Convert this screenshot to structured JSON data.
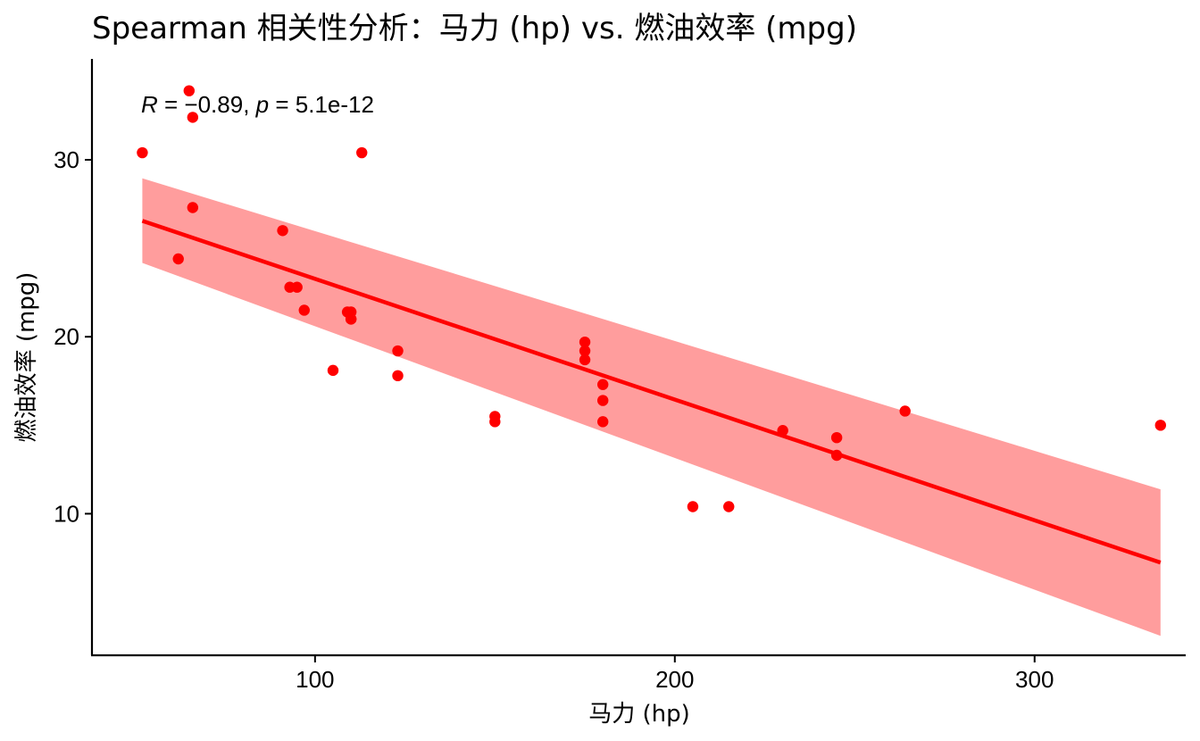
{
  "chart_data": {
    "type": "scatter",
    "title": "Spearman 相关性分析：马力 (hp) vs. 燃油效率 (mpg)",
    "xlabel": "马力 (hp)",
    "ylabel": "燃油效率 (mpg)",
    "xlim": [
      38,
      342
    ],
    "ylim": [
      2.0,
      35.7
    ],
    "xticks": [
      100,
      200,
      300
    ],
    "yticks": [
      10,
      20,
      30
    ],
    "grid": false,
    "point_color": "#FF0000",
    "line_color": "#FF0000",
    "band_color": "#FF9D9D",
    "points": [
      {
        "x": 110,
        "y": 21.0
      },
      {
        "x": 110,
        "y": 21.0
      },
      {
        "x": 93,
        "y": 22.8
      },
      {
        "x": 110,
        "y": 21.4
      },
      {
        "x": 175,
        "y": 18.7
      },
      {
        "x": 105,
        "y": 18.1
      },
      {
        "x": 245,
        "y": 14.3
      },
      {
        "x": 62,
        "y": 24.4
      },
      {
        "x": 95,
        "y": 22.8
      },
      {
        "x": 123,
        "y": 19.2
      },
      {
        "x": 123,
        "y": 17.8
      },
      {
        "x": 180,
        "y": 16.4
      },
      {
        "x": 180,
        "y": 17.3
      },
      {
        "x": 180,
        "y": 15.2
      },
      {
        "x": 205,
        "y": 10.4
      },
      {
        "x": 215,
        "y": 10.4
      },
      {
        "x": 230,
        "y": 14.7
      },
      {
        "x": 66,
        "y": 32.4
      },
      {
        "x": 52,
        "y": 30.4
      },
      {
        "x": 65,
        "y": 33.9
      },
      {
        "x": 97,
        "y": 21.5
      },
      {
        "x": 150,
        "y": 15.5
      },
      {
        "x": 150,
        "y": 15.2
      },
      {
        "x": 245,
        "y": 13.3
      },
      {
        "x": 175,
        "y": 19.2
      },
      {
        "x": 66,
        "y": 27.3
      },
      {
        "x": 91,
        "y": 26.0
      },
      {
        "x": 113,
        "y": 30.4
      },
      {
        "x": 264,
        "y": 15.8
      },
      {
        "x": 175,
        "y": 19.7
      },
      {
        "x": 335,
        "y": 15.0
      },
      {
        "x": 109,
        "y": 21.4
      }
    ],
    "fit": {
      "x_range": [
        52,
        335
      ],
      "y_range": [
        26.55,
        7.24
      ]
    },
    "confidence_band": {
      "x": [
        52,
        335
      ],
      "lower": [
        24.17,
        3.1
      ],
      "upper": [
        28.95,
        11.38
      ]
    },
    "annotation": {
      "r_symbol": "R",
      "r_text": " = −0.89, ",
      "p_symbol": "p",
      "p_text": " = 5.1e-12"
    }
  }
}
